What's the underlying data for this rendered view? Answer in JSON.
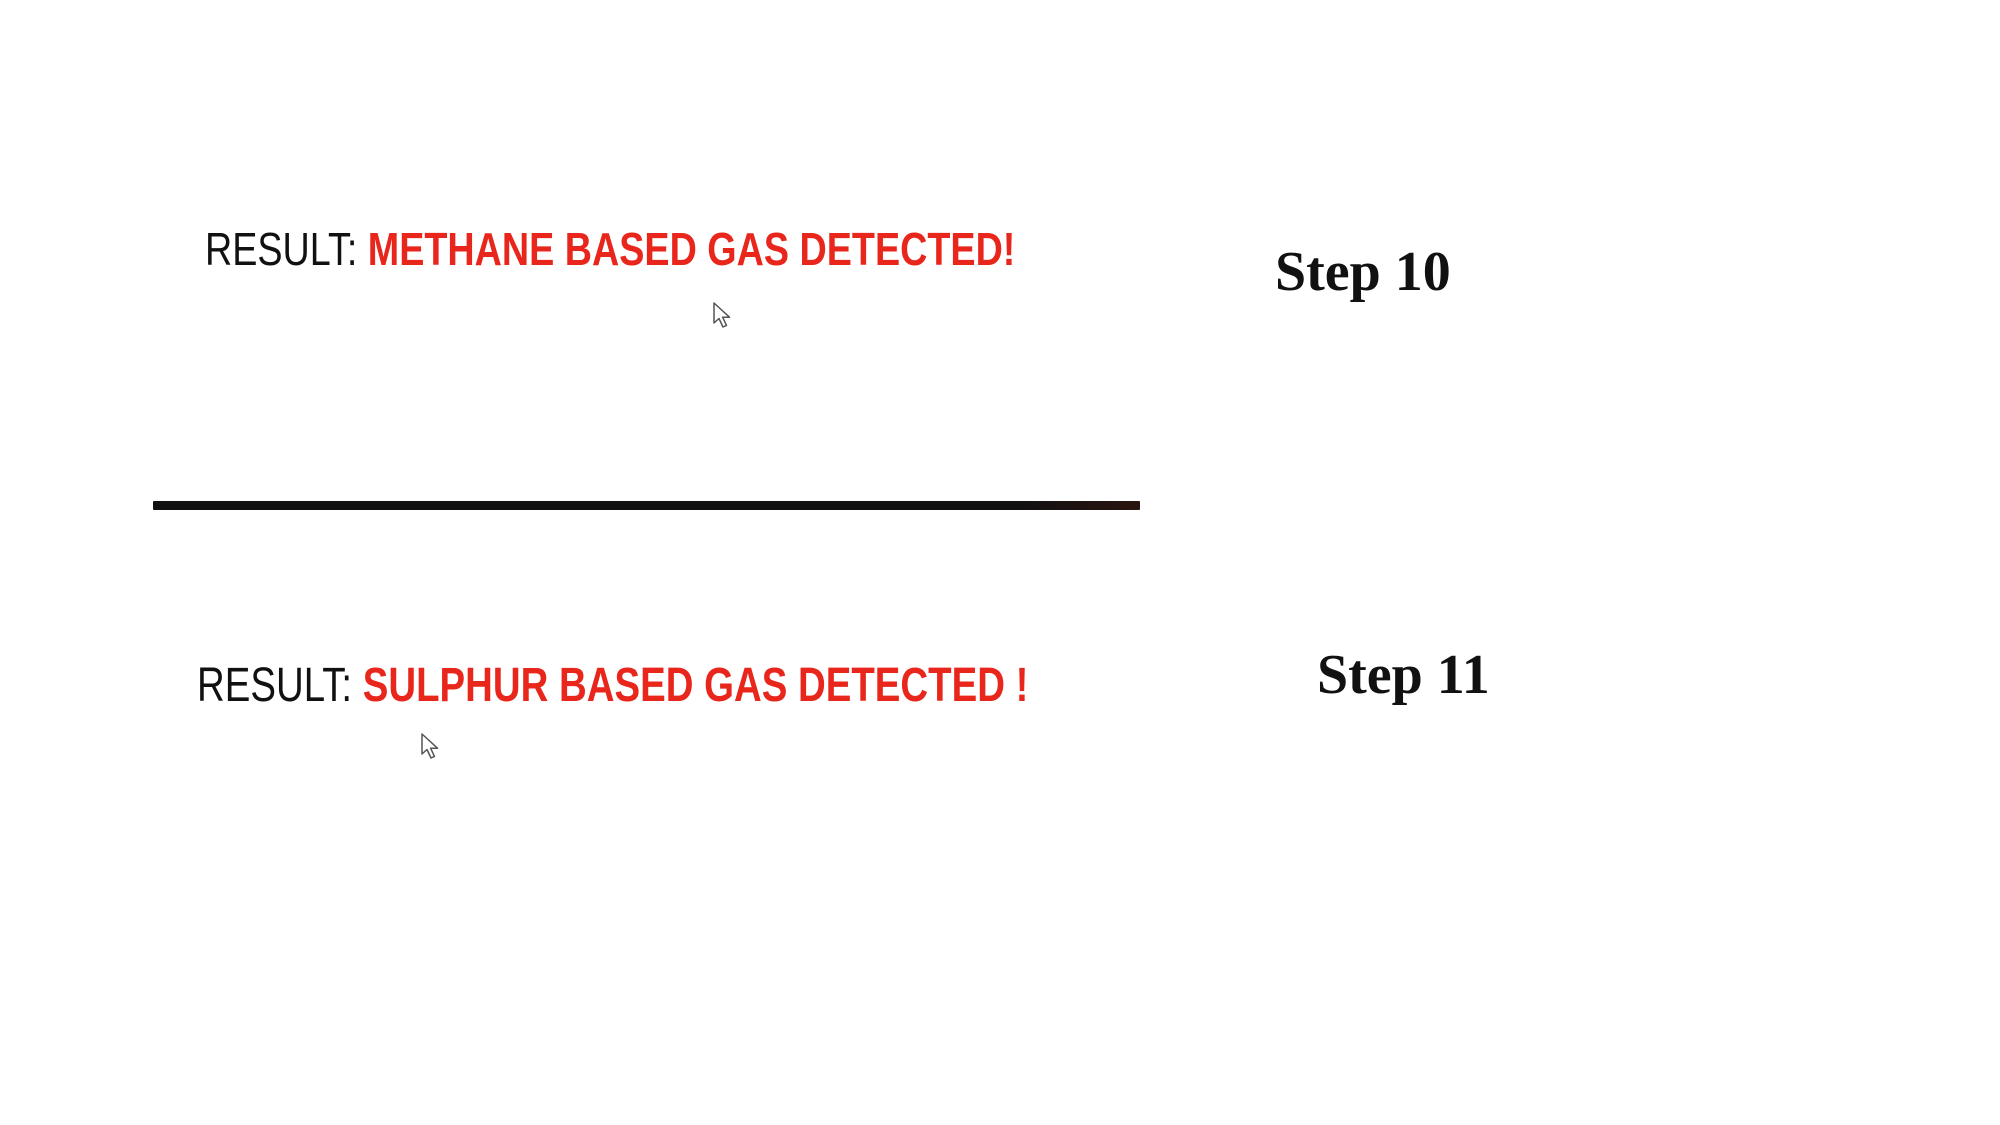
{
  "panels": [
    {
      "result_label": "RESULT:",
      "result_value": "METHANE BASED GAS DETECTED!",
      "step_label": "Step 10"
    },
    {
      "result_label": "RESULT:",
      "result_value": "SULPHUR BASED GAS DETECTED !",
      "step_label": "Step 11"
    }
  ],
  "colors": {
    "result_value": "#e8261c",
    "label_text": "#111111",
    "divider": "#111111",
    "background": "#ffffff"
  },
  "icons": {
    "cursor": "mouse-pointer-icon"
  }
}
